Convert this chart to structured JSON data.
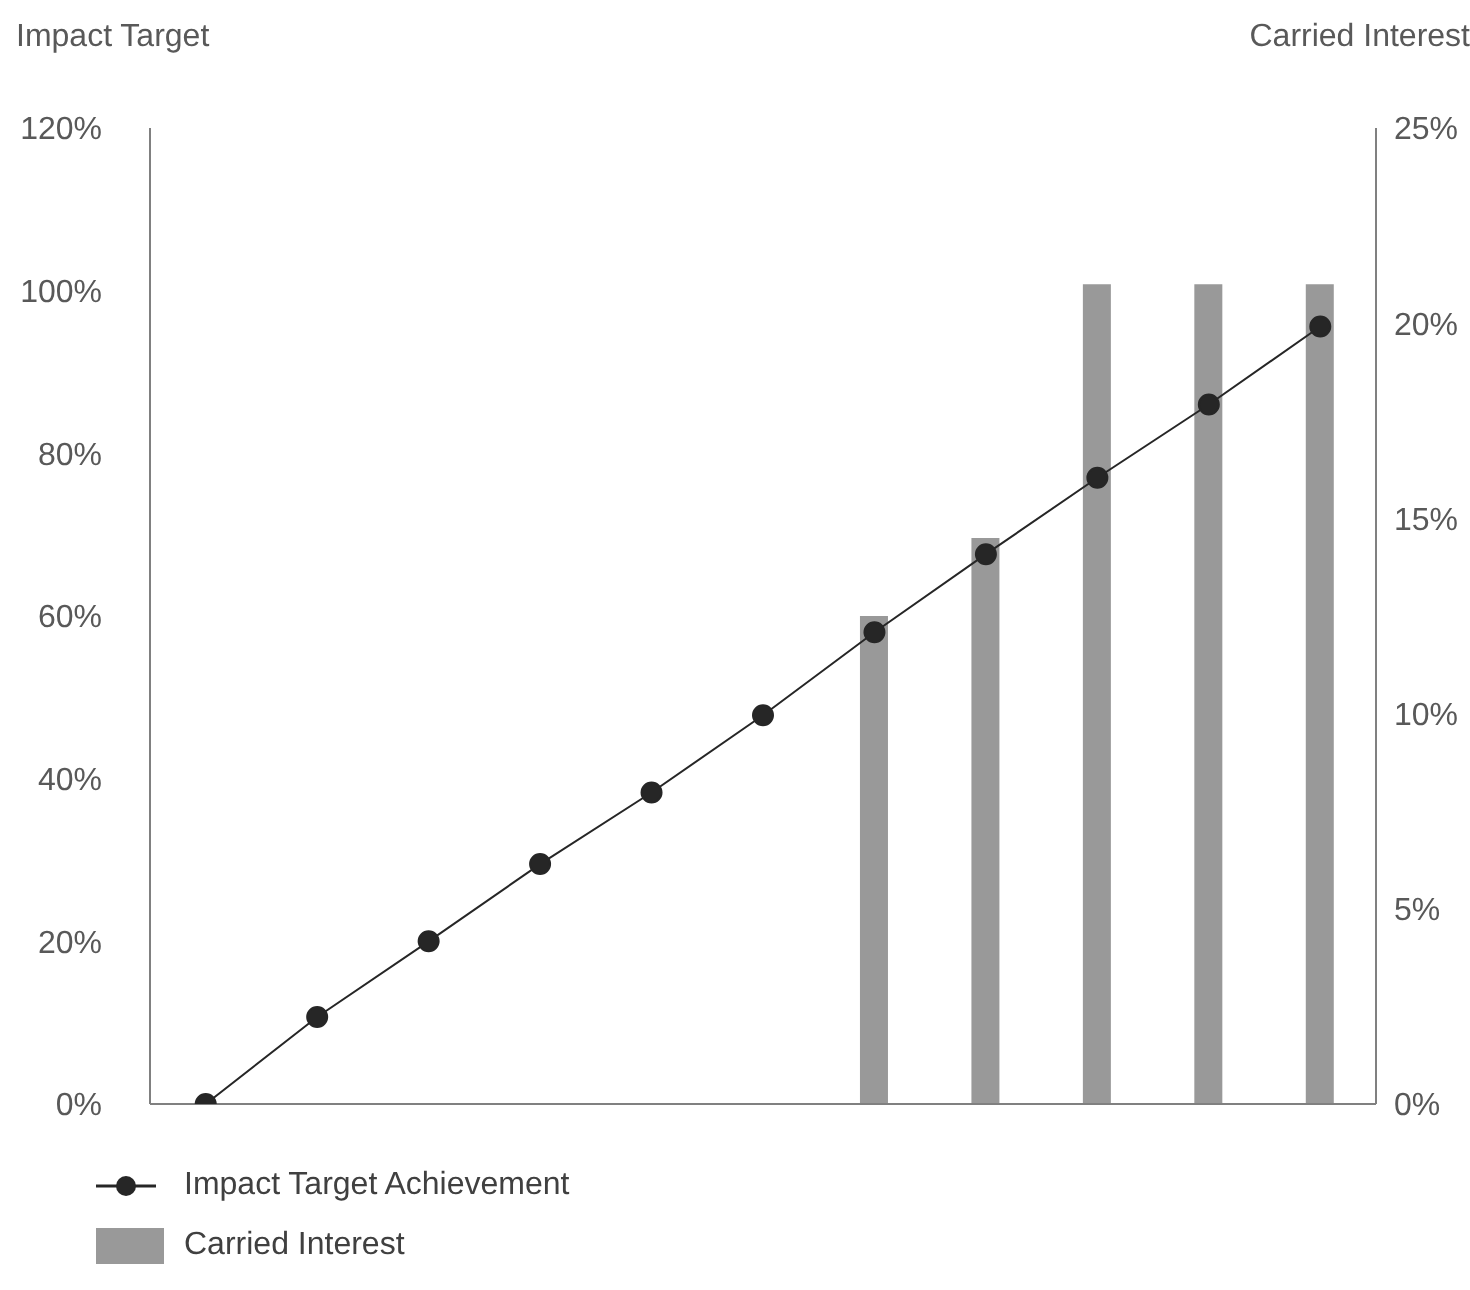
{
  "chart_data": {
    "type": "line",
    "ylabel": "Impact Target",
    "y2label": "Carried Interest",
    "categories": [
      null,
      null,
      null,
      null,
      null,
      null,
      null,
      null,
      null,
      null,
      null
    ],
    "series": [
      {
        "name": "Impact Target Achievement",
        "color": "#262626",
        "marker": "circle",
        "values": [
          0,
          10.7,
          20,
          29.5,
          38.3,
          47.8,
          58,
          67.6,
          77,
          86,
          95.6
        ]
      },
      {
        "name": "Carried Interest",
        "type": "bar",
        "axis": "y2",
        "color": "#999999",
        "values": [
          null,
          null,
          null,
          null,
          null,
          null,
          12.5,
          14.5,
          21,
          21,
          21
        ]
      }
    ],
    "ylim": [
      0,
      120
    ],
    "yticks": [
      {
        "value": 0,
        "label": "0%"
      },
      {
        "value": 20,
        "label": "20%"
      },
      {
        "value": 40,
        "label": "40%"
      },
      {
        "value": 60,
        "label": "60%"
      },
      {
        "value": 80,
        "label": "80%"
      },
      {
        "value": 100,
        "label": "100%"
      },
      {
        "value": 120,
        "label": "120%"
      }
    ],
    "y2lim": [
      0,
      25
    ],
    "y2ticks": [
      {
        "value": 0,
        "label": "0%"
      },
      {
        "value": 5,
        "label": "5%"
      },
      {
        "value": 10,
        "label": "10%"
      },
      {
        "value": 15,
        "label": "15%"
      },
      {
        "value": 20,
        "label": "20%"
      },
      {
        "value": 25,
        "label": "25%"
      }
    ],
    "tick_labels": "y",
    "grid": false,
    "legend": "bottom"
  }
}
